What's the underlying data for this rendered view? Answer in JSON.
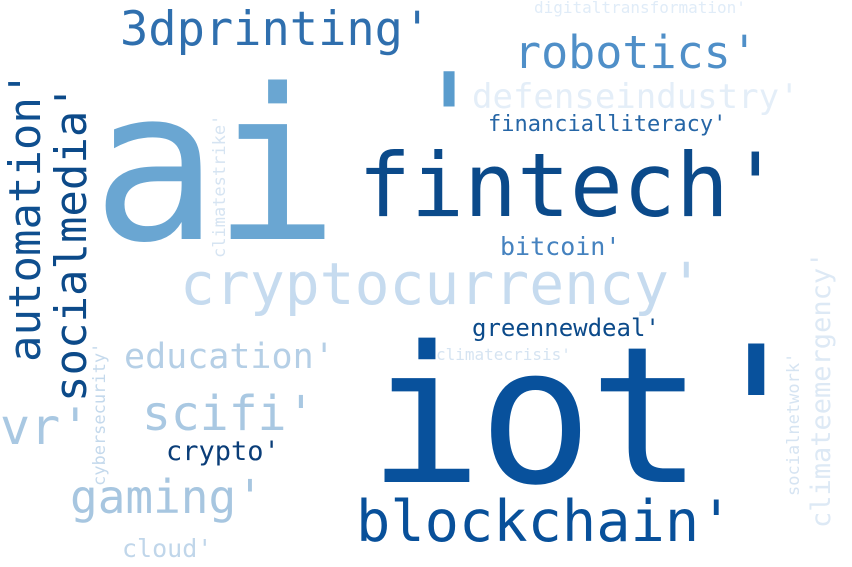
{
  "palette": {
    "navy": "#08306b",
    "dark": "#08519c",
    "mid": "#2171b5",
    "medium": "#4292c6",
    "light": "#6baed6",
    "pale": "#9ecae1",
    "faint": "#c6dbef",
    "ghost": "#deebf7"
  },
  "words": {
    "ai": "ai",
    "ai_quote": "'",
    "iot": "iot'",
    "fintech": "fintech'",
    "cryptocurrency": "cryptocurrency'",
    "blockchain": "blockchain'",
    "robotics": "robotics'",
    "threedprinting": "3dprinting'",
    "automation": "automation'",
    "socialmedia": "socialmedia'",
    "defenseindustry": "defenseindustry'",
    "financialliteracy": "financialliteracy'",
    "digitaltransformation": "digitaltransformation'",
    "climatestrike": "climatestrike'",
    "bitcoin": "bitcoin'",
    "greennewdeal": "greennewdeal'",
    "climatecrisis": "climatecrisis'",
    "education": "education'",
    "scifi": "scifi'",
    "vr": "vr'",
    "crypto": "crypto'",
    "gaming": "gaming'",
    "cloud": "cloud'",
    "cybersecurity": "cybersecurity'",
    "socialnetwork": "socialnetwork'",
    "climateemergency": "climateemergency'"
  }
}
